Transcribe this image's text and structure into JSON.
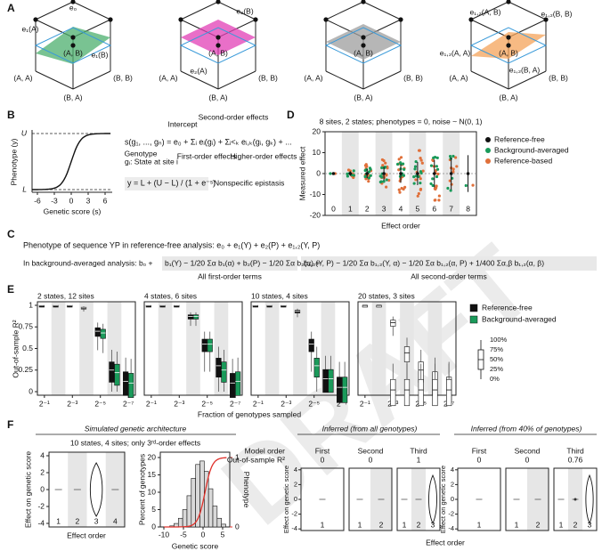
{
  "watermark": "DRAFT",
  "panel_a": {
    "label": "A",
    "cubes": [
      {
        "corners": [
          "(A, A)",
          "(B, B)",
          "(B, A)"
        ],
        "center": "(A, B)",
        "plane_color": "#4caf6e",
        "effects": [
          "e₀",
          "e₁(A)",
          "e₁(B)"
        ],
        "effect_colors": [
          "#3a9ad9",
          "#2e9d57",
          "#2e9d57"
        ]
      },
      {
        "corners": [
          "(A, A)",
          "(B, B)",
          "(B, A)"
        ],
        "center": "(A, B)",
        "plane_color": "#e23fb5",
        "effects": [
          "e₂(B)",
          "e₂(A)"
        ],
        "effect_colors": [
          "#c2258f",
          "#c2258f"
        ]
      },
      {
        "corners": [
          "(A, A)",
          "(B, B)",
          "(B, A)"
        ],
        "center": "(A, B)",
        "plane_color": "#9e9e9e"
      },
      {
        "corners": [
          "(A, A)",
          "(B, B)",
          "(B, A)"
        ],
        "center": "(A, B)",
        "plane_color": "#f4a35a",
        "effects": [
          "e₁,₂(A, B)",
          "e₁,₂(A, A)",
          "e₁,₂(B, A)",
          "e₁,₂(B, B)"
        ],
        "effect_colors": [
          "#e07a1f",
          "#e07a1f",
          "#e07a1f",
          "#e07a1f"
        ]
      }
    ]
  },
  "panel_b": {
    "label": "B",
    "y_axis": "Phenotype (y)",
    "x_axis": "Genetic score (s)",
    "xticks": [
      -6,
      -3,
      0,
      3,
      6
    ],
    "upper": "U",
    "lower": "L",
    "equation": "s(g₁, ..., gₙ) = e₀ + Σᵢ eᵢ(gᵢ) + Σᵢ<ₖ eᵢ,ₖ(gᵢ, gₖ) + ...",
    "intercept": "Intercept",
    "second_order": "Second-order effects",
    "genotype": "Genotype",
    "state": "gᵢ: State at site i",
    "first_order": "First-order effects",
    "higher_order": "Higher-order effects",
    "sigmoid": "y = L + (U − L) / (1 + e⁻ˢ)",
    "nonspecific": "Nonspecific epistasis"
  },
  "panel_d": {
    "label": "D",
    "title": "8 sites, 2 states; phenotypes = 0, noise ~ N(0, 1)",
    "y_axis": "Measured effect",
    "x_axis": "Effect order",
    "ylim": [
      -20,
      20
    ],
    "yticks": [
      20,
      10,
      0,
      -10,
      -20
    ],
    "categories": [
      0,
      1,
      2,
      3,
      4,
      5,
      6,
      7,
      8
    ],
    "legend": [
      {
        "name": "Reference-free",
        "color": "#111111"
      },
      {
        "name": "Background-averaged",
        "color": "#1a9a5a"
      },
      {
        "name": "Reference-based",
        "color": "#e0703a"
      }
    ]
  },
  "panel_c": {
    "label": "C",
    "line1": "Phenotype of sequence YP in reference-free analysis:  e₀ + e₁(Y) + e₂(P) + e₁,₂(Y, P)",
    "line2_start": "In background-averaged analysis:  b₀ +",
    "line2_first": "b₁(Y) − 1/20 Σα b₁(α) + b₂(P) − 1/20 Σα b₂(α) +",
    "line2_second": "b₁,₂(Y, P) − 1/20 Σα b₁,₂(Y, α) − 1/20 Σα b₁,₂(α, P) + 1/400 Σα,β b₁,₂(α, β)",
    "note_first": "All first-order terms",
    "note_second": "All second-order terms"
  },
  "panel_e": {
    "label": "E",
    "titles": [
      "2 states, 12 sites",
      "4 states, 6 sites",
      "10 states, 4 sites",
      "20 states, 3 sites"
    ],
    "ylim": [
      0,
      1
    ],
    "yticks": [
      1,
      0.75,
      0.5,
      0.25,
      0
    ],
    "xticks": [
      "2⁻¹",
      "2⁻³",
      "2⁻⁵",
      "2⁻⁷"
    ],
    "x_axis": "Fraction of genotypes sampled",
    "y_axis": "Out-of-sample R²",
    "series": [
      {
        "name": "Reference-free",
        "color": "#111111",
        "medians": [
          [
            1,
            1,
            1,
            0.97,
            0.7,
            0.25,
            0.12
          ],
          [
            1,
            1,
            1,
            0.87,
            0.55,
            0.3,
            0.1
          ],
          [
            1,
            1,
            1,
            0.93,
            0.55,
            0.15,
            0.05
          ],
          [
            1,
            1,
            0.8,
            0.45,
            0.25,
            0.12,
            0.05
          ]
        ]
      },
      {
        "name": "Background-averaged",
        "color": "#1a9a5a",
        "medians": [
          [
            null,
            null,
            null,
            null,
            0.68,
            0.22,
            0.1
          ],
          [
            null,
            null,
            null,
            0.87,
            0.55,
            0.25,
            0.12
          ],
          [
            null,
            null,
            null,
            null,
            0.3,
            0.15,
            0.05
          ],
          [
            null,
            null,
            0.02,
            0.02,
            0.02,
            0.02,
            0.02
          ]
        ]
      }
    ],
    "box_key": [
      "100%",
      "75%",
      "50%",
      "25%",
      "0%"
    ]
  },
  "panel_f": {
    "label": "F",
    "sim_title": "Simulated genetic architecture",
    "sim_subtitle": "10 states, 4 sites; only 3ʳᵈ-order effects",
    "effect_yticks": [
      4,
      2,
      0,
      -2,
      -4
    ],
    "orders": [
      1,
      2,
      3,
      4
    ],
    "x_axis": "Effect order",
    "y_axis": "Effect on genetic score",
    "hist": {
      "xticks": [
        -10,
        -5,
        0,
        5
      ],
      "yticks": [
        0,
        5,
        10,
        15,
        20
      ],
      "y2ticks": [
        0,
        1
      ],
      "y_axis": "Percent of genotypes",
      "y2_axis": "Phenotype",
      "x_axis": "Genetic score"
    },
    "model_order_label": "Model order",
    "r2_label": "Out-of-sample R²",
    "groups": [
      {
        "title": "Inferred (from all genotypes)",
        "models": [
          "First",
          "Second",
          "Third"
        ],
        "r2": [
          0,
          0,
          1
        ]
      },
      {
        "title": "Inferred (from 40% of genotypes)",
        "models": [
          "First",
          "Second",
          "Third"
        ],
        "r2": [
          0,
          0,
          0.76
        ]
      }
    ]
  }
}
